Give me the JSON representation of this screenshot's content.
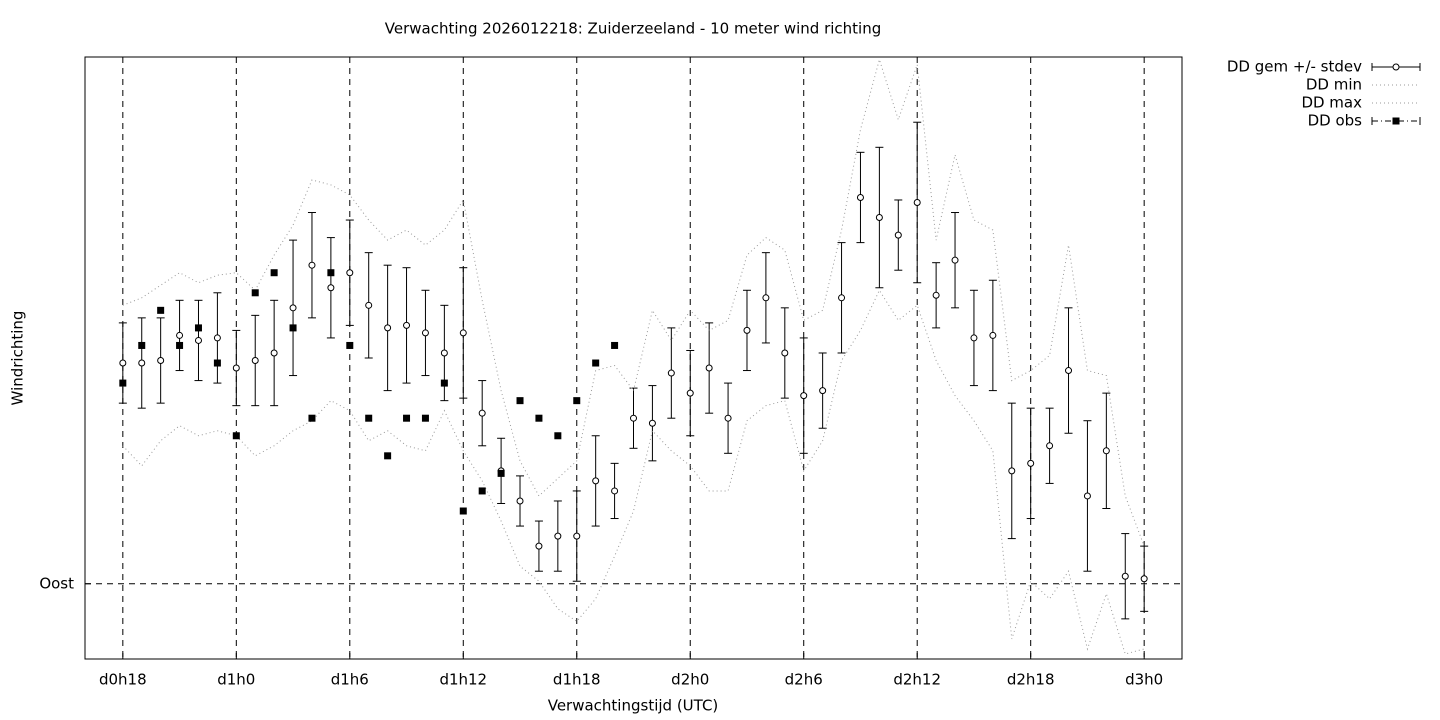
{
  "chart_data": {
    "type": "errorbar",
    "title": "Verwachting 2026012218: Zuiderzeeland - 10 meter wind richting",
    "xlabel": "Verwachtingstijd (UTC)",
    "ylabel": "Windrichting",
    "x": [
      18,
      19,
      20,
      21,
      22,
      23,
      24,
      25,
      26,
      27,
      28,
      29,
      30,
      31,
      32,
      33,
      34,
      35,
      36,
      37,
      38,
      39,
      40,
      41,
      42,
      43,
      44,
      45,
      46,
      47,
      48,
      49,
      50,
      51,
      52,
      53,
      54,
      55,
      56,
      57,
      58,
      59,
      60,
      61,
      62,
      63,
      64,
      65,
      66,
      67,
      68,
      69,
      70,
      71,
      72
    ],
    "xlim": [
      16,
      74
    ],
    "xticks": [
      {
        "value": 18,
        "label": "d0h18"
      },
      {
        "value": 24,
        "label": "d1h0"
      },
      {
        "value": 30,
        "label": "d1h6"
      },
      {
        "value": 36,
        "label": "d1h12"
      },
      {
        "value": 42,
        "label": "d1h18"
      },
      {
        "value": 48,
        "label": "d2h0"
      },
      {
        "value": 54,
        "label": "d2h6"
      },
      {
        "value": 60,
        "label": "d2h12"
      },
      {
        "value": 66,
        "label": "d2h18"
      },
      {
        "value": 72,
        "label": "d3h0"
      }
    ],
    "ylim": [
      60,
      300
    ],
    "yticks": [
      {
        "value": 90,
        "label": "Oost"
      }
    ],
    "grid": true,
    "legend": "outside-right-top",
    "series": [
      {
        "name": "DD gem +/- stdev",
        "style": "errorbar",
        "color": "#000000",
        "values": [
          178,
          178,
          179,
          189,
          187,
          188,
          176,
          179,
          182,
          200,
          217,
          208,
          214,
          201,
          192,
          193,
          190,
          182,
          190,
          158,
          135,
          123,
          105,
          109,
          109,
          131,
          127,
          156,
          154,
          174,
          166,
          176,
          156,
          191,
          204,
          182,
          165,
          167,
          204,
          244,
          236,
          229,
          242,
          205,
          219,
          188,
          189,
          135,
          138,
          145,
          175,
          125,
          143,
          93,
          92
        ],
        "errors": [
          16,
          18,
          17,
          14,
          16,
          18,
          15,
          18,
          21,
          27,
          21,
          20,
          21,
          21,
          25,
          23,
          17,
          19,
          26,
          13,
          13,
          10,
          10,
          14,
          18,
          18,
          11,
          12,
          15,
          18,
          17,
          18,
          14,
          16,
          18,
          18,
          23,
          15,
          22,
          18,
          28,
          14,
          32,
          13,
          19,
          19,
          22,
          27,
          22,
          15,
          25,
          30,
          23,
          17,
          13
        ]
      },
      {
        "name": "DD min",
        "style": "dotted-line",
        "color": "#999999",
        "values": [
          145,
          137,
          147,
          153,
          149,
          151,
          149,
          141,
          145,
          151,
          155,
          163,
          159,
          147,
          151,
          145,
          143,
          159,
          143,
          131,
          115,
          97,
          91,
          80,
          75,
          84,
          101,
          119,
          151,
          143,
          137,
          127,
          127,
          155,
          161,
          163,
          135,
          147,
          179,
          191,
          207,
          195,
          201,
          179,
          165,
          155,
          143,
          68,
          91,
          84,
          95,
          64,
          86,
          62,
          64
        ]
      },
      {
        "name": "DD max",
        "style": "dotted-line",
        "color": "#999999",
        "values": [
          201,
          204,
          209,
          214,
          210,
          213,
          214,
          207,
          221,
          233,
          251,
          249,
          245,
          235,
          227,
          231,
          225,
          231,
          243,
          203,
          167,
          139,
          125,
          132,
          139,
          175,
          177,
          167,
          199,
          187,
          199,
          191,
          195,
          221,
          228,
          223,
          195,
          199,
          231,
          271,
          299,
          275,
          297,
          227,
          261,
          235,
          231,
          171,
          175,
          181,
          225,
          175,
          173,
          125,
          105
        ]
      },
      {
        "name": "DD obs",
        "style": "points",
        "color": "#000000",
        "values": [
          170,
          185,
          199,
          185,
          192,
          178,
          149,
          206,
          214,
          192,
          156,
          214,
          185,
          156,
          141,
          156,
          156,
          170,
          119,
          127,
          134,
          163,
          156,
          149,
          163,
          178,
          185,
          null,
          null,
          null,
          null,
          null,
          null,
          null,
          null,
          null,
          null,
          null,
          null,
          null,
          null,
          null,
          null,
          null,
          null,
          null,
          null,
          null,
          null,
          null,
          null,
          null,
          null,
          null,
          null
        ]
      }
    ]
  }
}
